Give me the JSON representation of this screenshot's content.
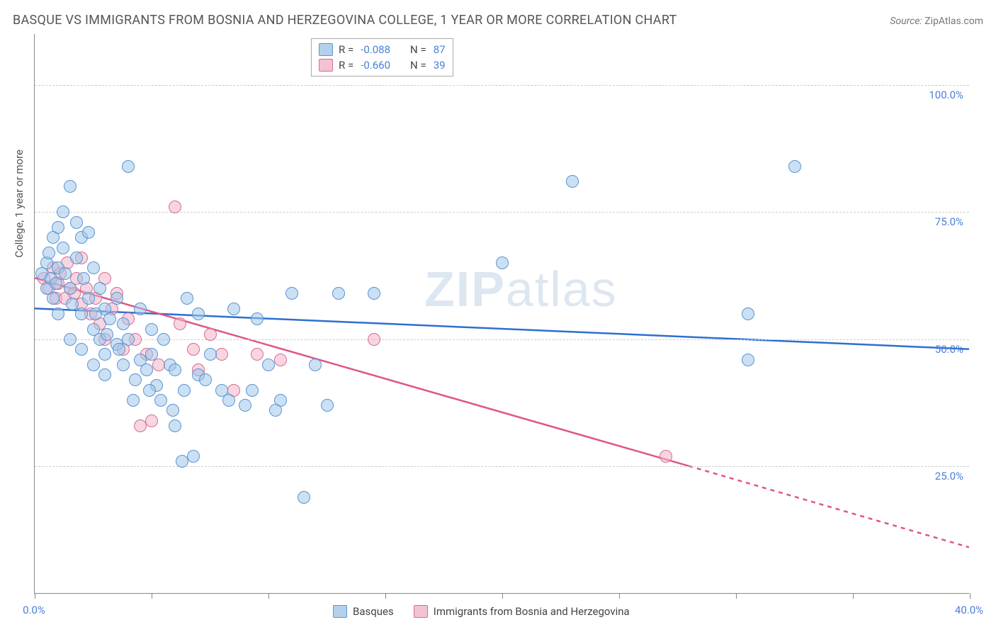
{
  "title": "BASQUE VS IMMIGRANTS FROM BOSNIA AND HERZEGOVINA COLLEGE, 1 YEAR OR MORE CORRELATION CHART",
  "source_prefix": "Source: ",
  "source_link": "ZipAtlas.com",
  "ylabel": "College, 1 year or more",
  "watermark_bold": "ZIP",
  "watermark_rest": "atlas",
  "chart": {
    "type": "scatter",
    "xlim": [
      0,
      40
    ],
    "ylim": [
      0,
      110
    ],
    "xtick_positions": [
      0,
      5,
      10,
      15,
      20,
      25,
      30,
      35,
      40
    ],
    "xtick_labels": {
      "0": "0.0%",
      "40": "40.0%"
    },
    "ytick_positions": [
      25,
      50,
      75,
      100
    ],
    "ytick_labels": {
      "25": "25.0%",
      "50": "50.0%",
      "75": "75.0%",
      "100": "100.0%"
    },
    "grid_color": "#cccccc",
    "axis_color": "#888888",
    "bg_color": "#ffffff",
    "series": {
      "basques": {
        "label": "Basques",
        "color_fill": "rgba(160,198,232,0.55)",
        "color_stroke": "#5a94d6",
        "line_color": "#2e6fd0",
        "R": "-0.088",
        "N": "87",
        "regression": {
          "x1": 0,
          "y1": 56,
          "x2": 40,
          "y2": 48
        },
        "points": [
          [
            0.3,
            63
          ],
          [
            0.5,
            60
          ],
          [
            0.5,
            65
          ],
          [
            0.6,
            67
          ],
          [
            0.7,
            62
          ],
          [
            0.8,
            70
          ],
          [
            0.8,
            58
          ],
          [
            1.0,
            72
          ],
          [
            1.0,
            55
          ],
          [
            1.0,
            64
          ],
          [
            1.2,
            75
          ],
          [
            1.2,
            68
          ],
          [
            1.5,
            80
          ],
          [
            1.5,
            60
          ],
          [
            1.5,
            50
          ],
          [
            1.8,
            73
          ],
          [
            1.8,
            66
          ],
          [
            2.0,
            70
          ],
          [
            2.0,
            55
          ],
          [
            2.0,
            48
          ],
          [
            2.3,
            71
          ],
          [
            2.3,
            58
          ],
          [
            2.5,
            45
          ],
          [
            2.5,
            52
          ],
          [
            2.5,
            64
          ],
          [
            2.8,
            60
          ],
          [
            2.8,
            50
          ],
          [
            3.0,
            56
          ],
          [
            3.0,
            43
          ],
          [
            3.0,
            47
          ],
          [
            3.2,
            54
          ],
          [
            3.5,
            49
          ],
          [
            3.5,
            58
          ],
          [
            3.8,
            45
          ],
          [
            3.8,
            53
          ],
          [
            4.0,
            84
          ],
          [
            4.0,
            50
          ],
          [
            4.2,
            38
          ],
          [
            4.5,
            46
          ],
          [
            4.5,
            56
          ],
          [
            4.8,
            44
          ],
          [
            5.0,
            52
          ],
          [
            5.0,
            47
          ],
          [
            5.2,
            41
          ],
          [
            5.5,
            50
          ],
          [
            5.8,
            45
          ],
          [
            6.0,
            33
          ],
          [
            6.0,
            44
          ],
          [
            6.3,
            26
          ],
          [
            6.5,
            58
          ],
          [
            6.8,
            27
          ],
          [
            7.0,
            43
          ],
          [
            7.0,
            55
          ],
          [
            7.5,
            47
          ],
          [
            8.0,
            40
          ],
          [
            8.5,
            56
          ],
          [
            9.0,
            37
          ],
          [
            9.5,
            54
          ],
          [
            10.0,
            45
          ],
          [
            10.5,
            38
          ],
          [
            11.0,
            59
          ],
          [
            11.5,
            19
          ],
          [
            12.0,
            45
          ],
          [
            12.5,
            37
          ],
          [
            13.0,
            59
          ],
          [
            14.5,
            59
          ],
          [
            20.0,
            65
          ],
          [
            23.0,
            81
          ],
          [
            30.5,
            55
          ],
          [
            30.5,
            46
          ],
          [
            32.5,
            84
          ],
          [
            0.9,
            61
          ],
          [
            1.3,
            63
          ],
          [
            1.6,
            57
          ],
          [
            2.1,
            62
          ],
          [
            2.6,
            55
          ],
          [
            3.1,
            51
          ],
          [
            3.6,
            48
          ],
          [
            4.3,
            42
          ],
          [
            4.9,
            40
          ],
          [
            5.4,
            38
          ],
          [
            5.9,
            36
          ],
          [
            6.4,
            40
          ],
          [
            7.3,
            42
          ],
          [
            8.3,
            38
          ],
          [
            9.3,
            40
          ],
          [
            10.3,
            36
          ]
        ]
      },
      "bosnia": {
        "label": "Immigrants from Bosnia and Herzegovina",
        "color_fill": "rgba(240,180,200,0.55)",
        "color_stroke": "#d96a8f",
        "line_color": "#e05585",
        "R": "-0.660",
        "N": "39",
        "regression_solid": {
          "x1": 0,
          "y1": 62,
          "x2": 28,
          "y2": 25
        },
        "regression_dash": {
          "x1": 28,
          "y1": 25,
          "x2": 40,
          "y2": 9
        },
        "points": [
          [
            0.4,
            62
          ],
          [
            0.6,
            60
          ],
          [
            0.8,
            64
          ],
          [
            0.9,
            58
          ],
          [
            1.0,
            61
          ],
          [
            1.1,
            63
          ],
          [
            1.3,
            58
          ],
          [
            1.4,
            65
          ],
          [
            1.5,
            60
          ],
          [
            1.7,
            59
          ],
          [
            1.8,
            62
          ],
          [
            2.0,
            66
          ],
          [
            2.0,
            57
          ],
          [
            2.2,
            60
          ],
          [
            2.4,
            55
          ],
          [
            2.6,
            58
          ],
          [
            2.8,
            53
          ],
          [
            3.0,
            62
          ],
          [
            3.0,
            50
          ],
          [
            3.3,
            56
          ],
          [
            3.5,
            59
          ],
          [
            3.8,
            48
          ],
          [
            4.0,
            54
          ],
          [
            4.3,
            50
          ],
          [
            4.5,
            33
          ],
          [
            4.8,
            47
          ],
          [
            5.0,
            34
          ],
          [
            5.3,
            45
          ],
          [
            6.0,
            76
          ],
          [
            6.2,
            53
          ],
          [
            6.8,
            48
          ],
          [
            7.0,
            44
          ],
          [
            7.5,
            51
          ],
          [
            8.0,
            47
          ],
          [
            8.5,
            40
          ],
          [
            9.5,
            47
          ],
          [
            10.5,
            46
          ],
          [
            14.5,
            50
          ],
          [
            27.0,
            27
          ]
        ]
      }
    }
  },
  "legend_top": {
    "r_label": "R =",
    "n_label": "N ="
  }
}
